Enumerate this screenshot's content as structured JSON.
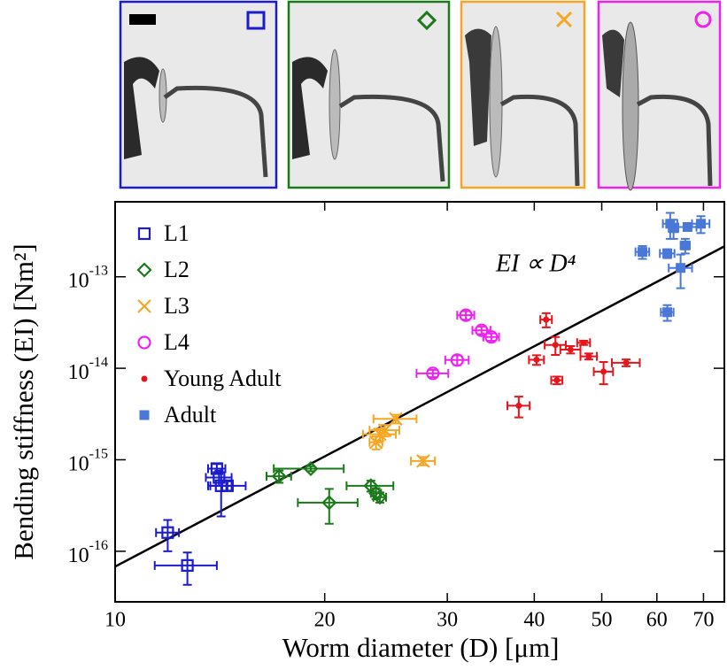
{
  "chart_data": {
    "type": "scatter",
    "x_label": "Worm diameter (D) [μm]",
    "y_label": "Bending stiffness (EI) [Nm²]",
    "annotation": "EI ∝ D⁴",
    "x_scale": "log",
    "y_scale": "log",
    "xlim": [
      10,
      75
    ],
    "ylim": [
      2.8e-17,
      6.6e-13
    ],
    "xticks": [
      10,
      20,
      30,
      40,
      50,
      60,
      70
    ],
    "yticks": [
      {
        "value": 1e-16,
        "label": {
          "base": "10",
          "exponent": "-16"
        }
      },
      {
        "value": 1e-15,
        "label": {
          "base": "10",
          "exponent": "-15"
        }
      },
      {
        "value": 1e-14,
        "label": {
          "base": "10",
          "exponent": "-14"
        }
      },
      {
        "value": 1e-13,
        "label": {
          "base": "10",
          "exponent": "-13"
        }
      }
    ],
    "legend": "upper left",
    "fit_line": {
      "color": "#000000",
      "x": [
        10,
        75
      ],
      "values": [
        6.8e-17,
        2.15e-13
      ]
    },
    "series": [
      {
        "name": "L1",
        "color": "#1c1ccc",
        "marker": "square-open",
        "x": [
          11.9,
          12.7,
          14.0,
          14.1,
          14.2,
          14.5
        ],
        "values": [
          1.6e-16,
          7e-17,
          8e-16,
          6.4e-16,
          5.2e-16,
          5.2e-16
        ],
        "xerr": [
          0.45,
          1.3,
          0.4,
          0.6,
          0.5,
          0.9
        ],
        "yerr": [
          6e-17,
          2.7e-17,
          1e-16,
          1.2e-16,
          2.8e-16,
          6e-17
        ]
      },
      {
        "name": "L2",
        "color": "#1a7a1a",
        "marker": "diamond-open",
        "x": [
          17.2,
          19.1,
          20.3,
          23.3,
          23.7,
          24.0
        ],
        "values": [
          6.6e-16,
          8e-16,
          3.4e-16,
          5.2e-16,
          4.3e-16,
          3.9e-16
        ],
        "xerr": [
          0.7,
          2.2,
          2.0,
          1.8,
          0.4,
          0.5
        ],
        "yerr": [
          1e-16,
          5e-17,
          1.4e-16,
          7e-17,
          6e-17,
          5e-17
        ]
      },
      {
        "name": "L3",
        "color": "#f5a623",
        "marker": "x",
        "x": [
          23.7,
          24.0,
          24.4,
          25.3,
          27.7
        ],
        "values": [
          1.55e-15,
          1.9e-15,
          2.1e-15,
          2.8e-15,
          9.7e-16
        ],
        "xerr": [
          0.5,
          1.3,
          1.2,
          1.8,
          1.1
        ],
        "yerr": [
          2.5e-16,
          3e-16,
          3e-16,
          3e-16,
          1e-16
        ]
      },
      {
        "name": "L4",
        "color": "#ee22ee",
        "marker": "circle-open",
        "x": [
          28.6,
          31.0,
          31.9,
          33.6,
          34.7
        ],
        "values": [
          8.8e-15,
          1.23e-14,
          3.8e-14,
          2.6e-14,
          2.2e-14
        ],
        "xerr": [
          1.5,
          1.2,
          0.9,
          1.0,
          0.9
        ],
        "yerr": [
          8e-16,
          1.5e-15,
          4e-15,
          2.5e-15,
          2e-15
        ]
      },
      {
        "name": "Young Adult",
        "color": "#e8141a",
        "marker": "dot",
        "x": [
          38.0,
          40.3,
          41.6,
          42.9,
          43.1,
          45.1,
          47.1,
          47.9,
          50.3,
          54.2
        ],
        "values": [
          3.9e-15,
          1.24e-14,
          3.4e-14,
          1.8e-14,
          7.4e-15,
          1.6e-14,
          1.9e-14,
          1.35e-14,
          9.2e-15,
          1.15e-14
        ],
        "xerr": [
          1.4,
          1.0,
          0.8,
          1.5,
          0.8,
          1.5,
          1.0,
          1.3,
          1.6,
          2.5
        ],
        "yerr": [
          1e-15,
          1.5e-15,
          6e-15,
          4e-15,
          7e-16,
          1.5e-15,
          1e-15,
          1e-15,
          2.5e-15,
          1e-15
        ]
      },
      {
        "name": "Adult",
        "color": "#4a78d8",
        "marker": "square",
        "x": [
          57.2,
          62.1,
          62.1,
          62.7,
          63.4,
          64.9,
          65.9,
          66.4,
          69.4
        ],
        "values": [
          1.87e-13,
          4.1e-14,
          1.8e-13,
          3.8e-13,
          3.4e-13,
          1.25e-13,
          2.2e-13,
          3.5e-13,
          3.8e-13
        ],
        "xerr": [
          1.3,
          1.3,
          1.5,
          1.5,
          1.0,
          2.5,
          1.0,
          2.0,
          2.0
        ],
        "yerr": [
          3e-14,
          8e-15,
          2e-14,
          1.2e-13,
          8e-14,
          5e-14,
          4e-14,
          3e-14,
          8e-14
        ]
      }
    ]
  }
}
